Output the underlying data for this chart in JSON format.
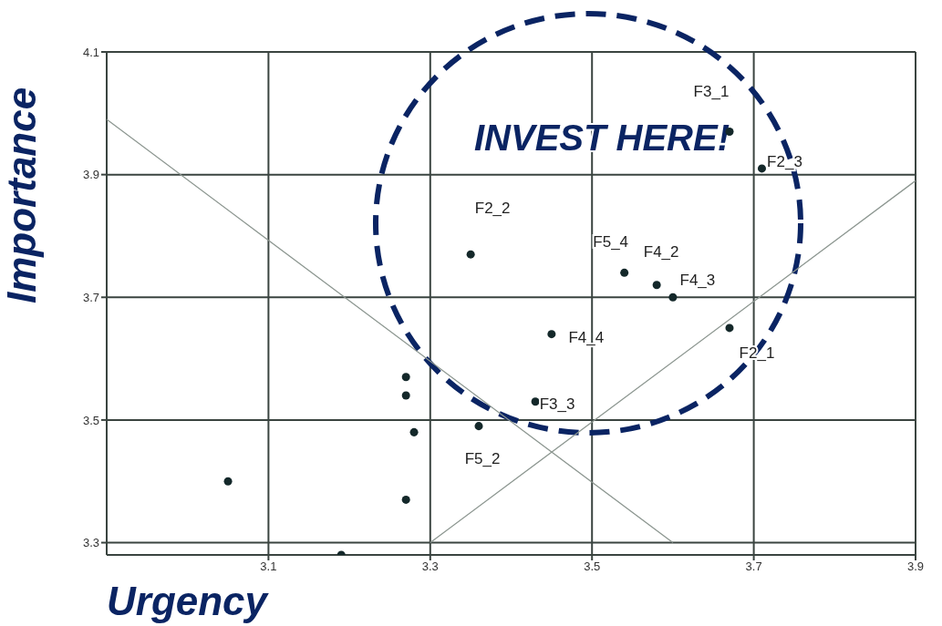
{
  "chart_data": {
    "type": "scatter",
    "xlabel": "Urgency",
    "ylabel": "Importance",
    "xlim": [
      2.9,
      3.9
    ],
    "xticks": [
      3.1,
      3.3,
      3.5,
      3.7,
      3.9
    ],
    "ylim": [
      3.28,
      4.1
    ],
    "yticks": [
      3.3,
      3.5,
      3.7,
      3.9,
      4.1
    ],
    "grid": true,
    "legend": false,
    "marker": "circle",
    "series": [
      {
        "color": "#14282a",
        "x": [
          3.67,
          3.71,
          3.35,
          3.54,
          3.58,
          3.6,
          3.67,
          3.45,
          3.43,
          3.36,
          3.05,
          3.19,
          3.27,
          3.27,
          3.28,
          3.27
        ],
        "values": [
          3.97,
          3.91,
          3.77,
          3.74,
          3.72,
          3.7,
          3.65,
          3.64,
          3.53,
          3.49,
          3.4,
          3.28,
          3.57,
          3.54,
          3.48,
          3.37
        ]
      },
      {
        "type": "line",
        "marker": "none",
        "color": "#8c9690",
        "x": [
          2.9,
          3.6
        ],
        "values": [
          3.99,
          3.3
        ]
      },
      {
        "type": "line",
        "marker": "none",
        "color": "#8c9690",
        "x": [
          3.3,
          3.9
        ],
        "values": [
          3.3,
          3.89
        ]
      }
    ],
    "annotations": [
      {
        "text": "F3_1",
        "x": 3.67,
        "y": 3.97
      },
      {
        "text": "F2_3",
        "x": 3.71,
        "y": 3.91
      },
      {
        "text": "F2_2",
        "x": 3.35,
        "y": 3.77
      },
      {
        "text": "F5_4",
        "x": 3.54,
        "y": 3.74
      },
      {
        "text": "F4_2",
        "x": 3.58,
        "y": 3.72
      },
      {
        "text": "F4_3",
        "x": 3.6,
        "y": 3.7
      },
      {
        "text": "F2_1",
        "x": 3.67,
        "y": 3.65
      },
      {
        "text": "F4_4",
        "x": 3.45,
        "y": 3.64
      },
      {
        "text": "F3_3",
        "x": 3.43,
        "y": 3.53
      },
      {
        "text": "F5_2",
        "x": 3.36,
        "y": 3.49
      },
      "INVEST HERE!"
    ]
  }
}
